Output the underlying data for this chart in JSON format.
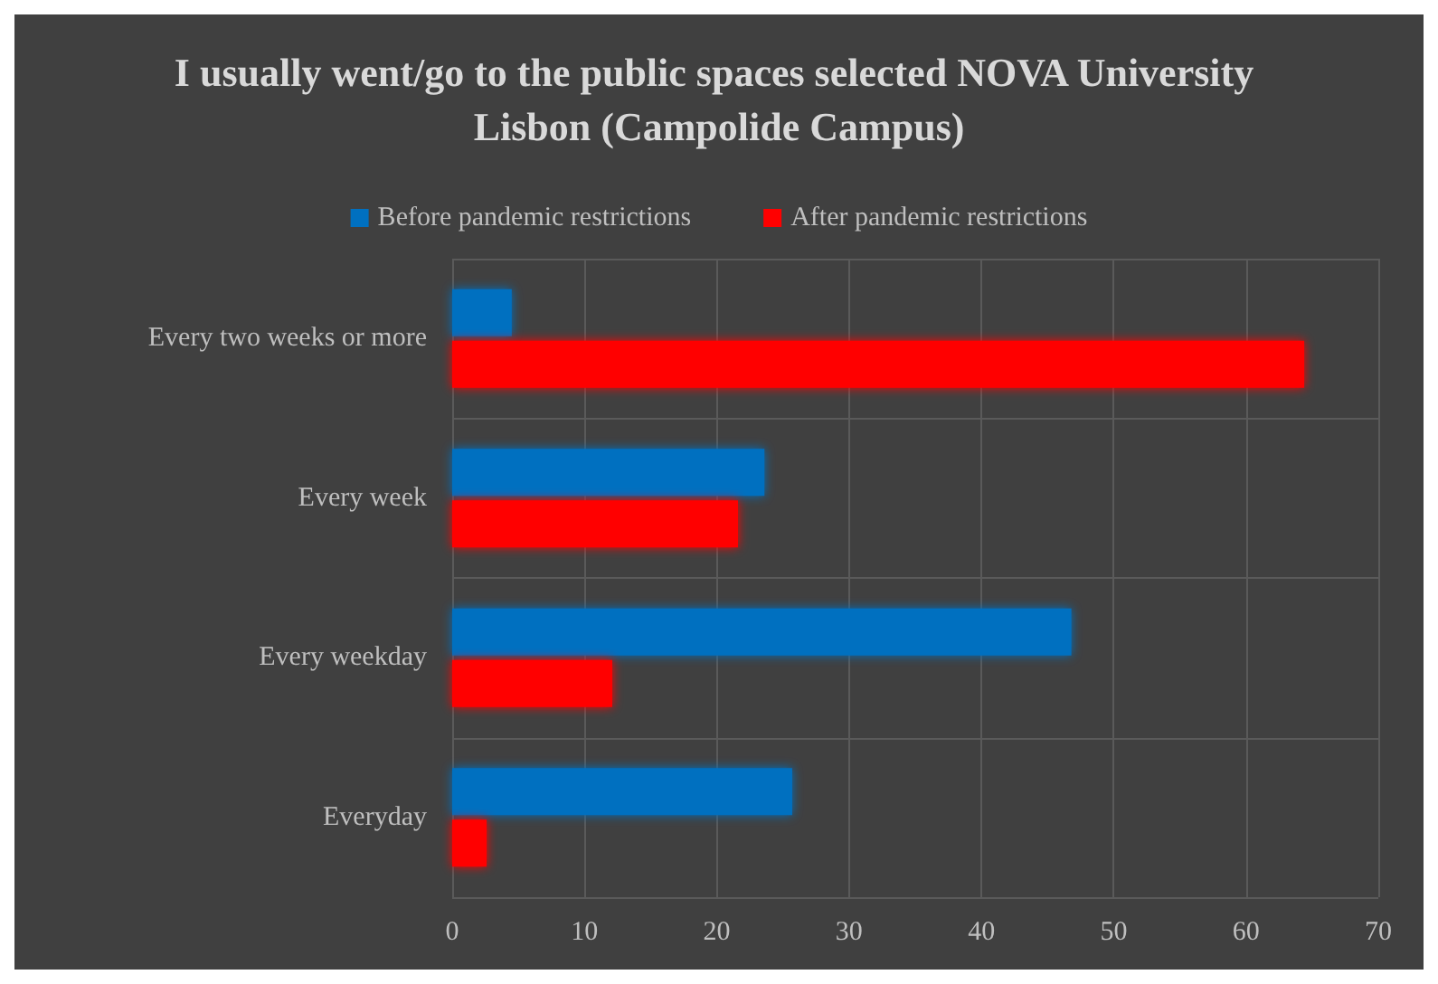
{
  "chart_data": {
    "type": "bar",
    "orientation": "horizontal",
    "title": "I usually went/go to the public spaces selected NOVA University Lisbon (Campolide Campus)",
    "categories": [
      "Every two weeks or more",
      "Every week",
      "Every weekday",
      "Everyday"
    ],
    "series": [
      {
        "name": "Before pandemic restrictions",
        "color": "#0070c0",
        "values": [
          4.5,
          23.6,
          46.8,
          25.7
        ]
      },
      {
        "name": "After pandemic restrictions",
        "color": "#ff0000",
        "values": [
          64.4,
          21.6,
          12.1,
          2.6
        ]
      }
    ],
    "xlim": [
      0,
      70
    ],
    "xticks": [
      0,
      10,
      20,
      30,
      40,
      50,
      60,
      70
    ],
    "grid": true,
    "legend": "top"
  }
}
